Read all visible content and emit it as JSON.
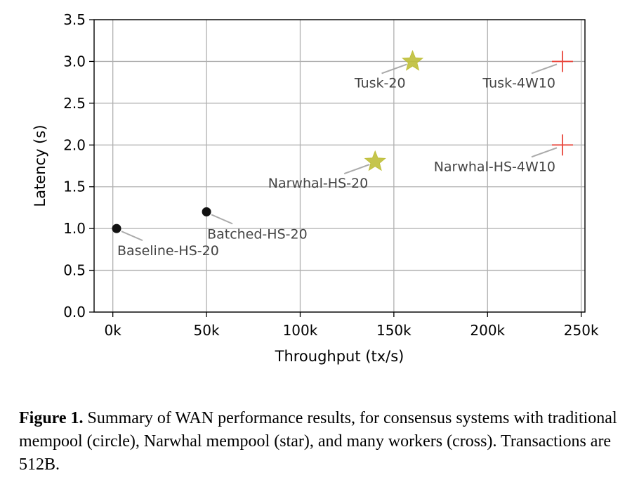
{
  "chart_data": {
    "type": "scatter",
    "xlabel": "Throughput (tx/s)",
    "ylabel": "Latency (s)",
    "xlim": [
      -10000,
      252000
    ],
    "ylim": [
      0,
      3.5
    ],
    "xticks": [
      0,
      50000,
      100000,
      150000,
      200000,
      250000
    ],
    "xtick_labels": [
      "0k",
      "50k",
      "100k",
      "150k",
      "200k",
      "250k"
    ],
    "yticks": [
      0,
      0.5,
      1.0,
      1.5,
      2.0,
      2.5,
      3.0,
      3.5
    ],
    "ytick_labels": [
      "0.0",
      "0.5",
      "1.0",
      "1.5",
      "2.0",
      "2.5",
      "3.0",
      "3.5"
    ],
    "grid": true,
    "points": [
      {
        "label": "Baseline-HS-20",
        "x": 2000,
        "y": 1.0,
        "marker": "circle",
        "color": "#111111",
        "label_side": "below-right"
      },
      {
        "label": "Batched-HS-20",
        "x": 50000,
        "y": 1.2,
        "marker": "circle",
        "color": "#111111",
        "label_side": "below-right"
      },
      {
        "label": "Narwhal-HS-20",
        "x": 140000,
        "y": 1.8,
        "marker": "star",
        "color": "#bfbf3a",
        "label_side": "below-left"
      },
      {
        "label": "Tusk-20",
        "x": 160000,
        "y": 3.0,
        "marker": "star",
        "color": "#bfbf3a",
        "label_side": "below-left"
      },
      {
        "label": "Narwhal-HS-4W10",
        "x": 240000,
        "y": 2.0,
        "marker": "cross",
        "color": "#e8463c",
        "label_side": "below-left"
      },
      {
        "label": "Tusk-4W10",
        "x": 240000,
        "y": 3.0,
        "marker": "cross",
        "color": "#e8463c",
        "label_side": "below-left"
      }
    ]
  },
  "caption": {
    "label": "Figure 1.",
    "text": " Summary of WAN performance results, for consensus systems with traditional mempool (circle), Narwhal mempool (star), and many workers (cross). Transactions are 512B."
  }
}
